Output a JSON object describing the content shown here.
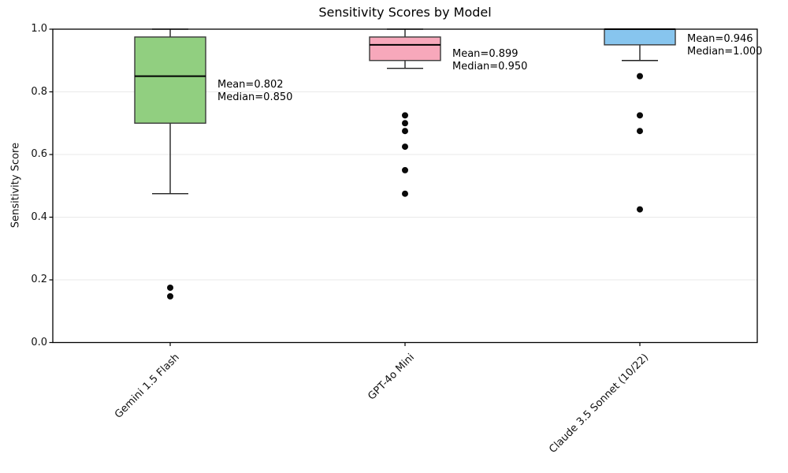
{
  "chart_data": {
    "type": "boxplot",
    "title": "Sensitivity Scores by Model",
    "xlabel": "",
    "ylabel": "Sensitivity Score",
    "ylim": [
      0.0,
      1.0
    ],
    "yticks": [
      0.0,
      0.2,
      0.4,
      0.6,
      0.8,
      1.0
    ],
    "grid": "horizontal-light",
    "legend": "none",
    "categories": [
      "Gemini 1.5 Flash",
      "GPT-4o Mini",
      "Claude 3.5 Sonnet (10/22)"
    ],
    "series": [
      {
        "name": "Gemini 1.5 Flash",
        "color": "#91cf80",
        "whisker_low": 0.475,
        "q1": 0.7,
        "median": 0.85,
        "q3": 0.975,
        "whisker_high": 1.0,
        "mean": 0.802,
        "outliers": [
          0.175,
          0.1475
        ],
        "annotation": [
          "Mean=0.802",
          "Median=0.850"
        ]
      },
      {
        "name": "GPT-4o Mini",
        "color": "#f7a8bb",
        "whisker_low": 0.875,
        "q1": 0.9,
        "median": 0.95,
        "q3": 0.975,
        "whisker_high": 1.0,
        "mean": 0.899,
        "outliers": [
          0.725,
          0.7,
          0.675,
          0.625,
          0.55,
          0.475
        ],
        "annotation": [
          "Mean=0.899",
          "Median=0.950"
        ]
      },
      {
        "name": "Claude 3.5 Sonnet (10/22)",
        "color": "#87c5ee",
        "whisker_low": 0.9,
        "q1": 0.95,
        "median": 1.0,
        "q3": 1.0,
        "whisker_high": 1.0,
        "mean": 0.946,
        "outliers": [
          0.85,
          0.725,
          0.675,
          0.425
        ],
        "annotation": [
          "Mean=0.946",
          "Median=1.000"
        ]
      }
    ],
    "style": {
      "box_edge_color": "#3a3a3a",
      "median_color": "#000000",
      "whisker_color": "#222222",
      "outlier_color": "#0a0a0a",
      "grid_color": "#e9e9e9",
      "spine_color": "#000000"
    }
  }
}
